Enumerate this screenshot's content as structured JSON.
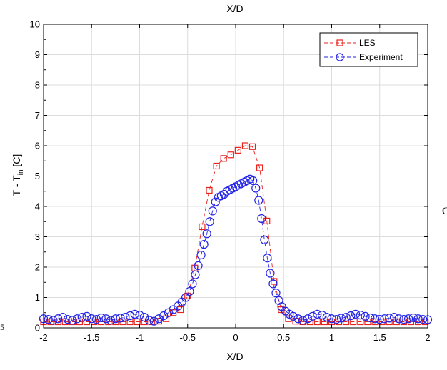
{
  "top_label": "X/D",
  "left_edge_text": "5",
  "right_edge_text": "C",
  "chart_data": {
    "type": "line",
    "xlabel": "X/D",
    "ylabel_main": "T - T",
    "ylabel_sub": "in",
    "ylabel_unit": " [C]",
    "xlim": [
      -2,
      2
    ],
    "ylim": [
      0,
      10
    ],
    "xticks": [
      -2,
      -1.5,
      -1,
      -0.5,
      0,
      0.5,
      1,
      1.5,
      2
    ],
    "xtick_labels": [
      "-2",
      "-1.5",
      "-1",
      "-0.5",
      "0",
      "0.5",
      "1",
      "1.5",
      "2"
    ],
    "yticks": [
      0,
      1,
      2,
      3,
      4,
      5,
      6,
      7,
      8,
      9,
      10
    ],
    "ytick_labels": [
      "0",
      "1",
      "2",
      "3",
      "4",
      "5",
      "6",
      "7",
      "8",
      "9",
      "10"
    ],
    "grid": true,
    "legend_position": "top-right",
    "series": [
      {
        "name": "LES",
        "color": "#e8231e",
        "marker": "square",
        "line": "dashed",
        "x": [
          -2.0,
          -1.925,
          -1.85,
          -1.775,
          -1.7,
          -1.625,
          -1.55,
          -1.475,
          -1.4,
          -1.325,
          -1.25,
          -1.175,
          -1.1,
          -1.025,
          -0.95,
          -0.875,
          -0.8,
          -0.725,
          -0.65,
          -0.575,
          -0.5,
          -0.425,
          -0.35,
          -0.275,
          -0.2,
          -0.125,
          -0.05,
          0.025,
          0.1,
          0.175,
          0.25,
          0.325,
          0.4,
          0.475,
          0.55,
          0.625,
          0.7,
          0.775,
          0.85,
          0.925,
          1.0,
          1.075,
          1.15,
          1.225,
          1.3,
          1.375,
          1.45,
          1.525,
          1.6,
          1.675,
          1.75,
          1.825,
          1.9,
          1.975
        ],
        "y": [
          0.2,
          0.2,
          0.2,
          0.2,
          0.2,
          0.2,
          0.2,
          0.2,
          0.2,
          0.2,
          0.2,
          0.2,
          0.2,
          0.2,
          0.2,
          0.2,
          0.22,
          0.3,
          0.5,
          0.6,
          1.05,
          1.97,
          3.33,
          4.53,
          5.33,
          5.58,
          5.7,
          5.85,
          6.0,
          5.97,
          5.27,
          3.52,
          1.53,
          0.6,
          0.3,
          0.22,
          0.2,
          0.2,
          0.2,
          0.2,
          0.2,
          0.2,
          0.2,
          0.2,
          0.2,
          0.2,
          0.2,
          0.2,
          0.2,
          0.2,
          0.2,
          0.2,
          0.2,
          0.2
        ]
      },
      {
        "name": "Experiment",
        "color": "#2323e8",
        "marker": "circle",
        "line": "dashed",
        "x": [
          -2.0,
          -1.95,
          -1.9,
          -1.85,
          -1.8,
          -1.75,
          -1.7,
          -1.65,
          -1.6,
          -1.55,
          -1.5,
          -1.45,
          -1.4,
          -1.35,
          -1.3,
          -1.25,
          -1.2,
          -1.15,
          -1.1,
          -1.05,
          -1.0,
          -0.95,
          -0.9,
          -0.85,
          -0.8,
          -0.75,
          -0.7,
          -0.65,
          -0.6,
          -0.56,
          -0.52,
          -0.48,
          -0.45,
          -0.42,
          -0.39,
          -0.36,
          -0.33,
          -0.3,
          -0.27,
          -0.24,
          -0.21,
          -0.18,
          -0.15,
          -0.12,
          -0.09,
          -0.06,
          -0.03,
          0.0,
          0.03,
          0.06,
          0.09,
          0.12,
          0.15,
          0.18,
          0.21,
          0.24,
          0.27,
          0.3,
          0.33,
          0.36,
          0.39,
          0.42,
          0.45,
          0.48,
          0.52,
          0.56,
          0.6,
          0.65,
          0.7,
          0.75,
          0.8,
          0.85,
          0.9,
          0.95,
          1.0,
          1.05,
          1.1,
          1.15,
          1.2,
          1.25,
          1.3,
          1.35,
          1.4,
          1.45,
          1.5,
          1.55,
          1.6,
          1.65,
          1.7,
          1.75,
          1.8,
          1.85,
          1.9,
          1.95,
          2.0
        ],
        "y": [
          0.3,
          0.28,
          0.25,
          0.3,
          0.35,
          0.28,
          0.25,
          0.3,
          0.35,
          0.38,
          0.3,
          0.28,
          0.33,
          0.3,
          0.25,
          0.3,
          0.32,
          0.35,
          0.4,
          0.45,
          0.42,
          0.35,
          0.25,
          0.22,
          0.3,
          0.4,
          0.5,
          0.6,
          0.72,
          0.85,
          1.0,
          1.2,
          1.45,
          1.75,
          2.05,
          2.4,
          2.75,
          3.1,
          3.5,
          3.85,
          4.15,
          4.3,
          4.35,
          4.4,
          4.5,
          4.55,
          4.6,
          4.65,
          4.7,
          4.75,
          4.8,
          4.85,
          4.9,
          4.85,
          4.6,
          4.2,
          3.6,
          2.9,
          2.3,
          1.8,
          1.45,
          1.15,
          0.9,
          0.7,
          0.55,
          0.45,
          0.38,
          0.3,
          0.25,
          0.3,
          0.38,
          0.45,
          0.42,
          0.35,
          0.3,
          0.28,
          0.32,
          0.35,
          0.4,
          0.45,
          0.42,
          0.38,
          0.33,
          0.3,
          0.28,
          0.3,
          0.32,
          0.35,
          0.3,
          0.28,
          0.3,
          0.33,
          0.3,
          0.28,
          0.27
        ]
      }
    ]
  }
}
